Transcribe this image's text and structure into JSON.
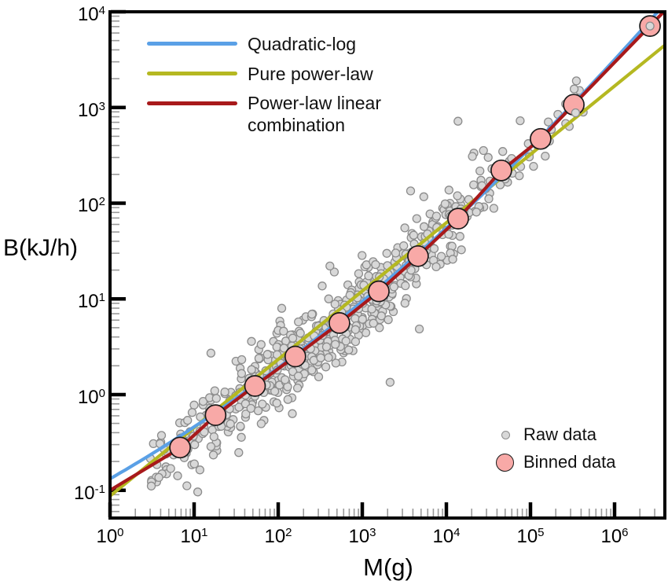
{
  "figure": {
    "x_axis": {
      "label": "M(g)",
      "tick_exponents": [
        0,
        1,
        2,
        3,
        4,
        5,
        6
      ]
    },
    "y_axis": {
      "label": "B(kJ/h)",
      "tick_exponents": [
        4,
        3,
        2,
        1,
        0,
        -1
      ]
    },
    "legend_fits": {
      "items": [
        {
          "label": "Quadratic-log",
          "color": "#5aa0e6"
        },
        {
          "label": "Pure power-law",
          "color": "#b5b821"
        },
        {
          "label": "Power-law linear combination",
          "color": "#a8191b"
        }
      ]
    },
    "legend_data": {
      "items": [
        {
          "label": "Raw data"
        },
        {
          "label": "Binned data"
        }
      ]
    }
  },
  "colors": {
    "quadratic_log_line": "#5aa0e6",
    "pure_power_law_line": "#b5b821",
    "combo_line": "#a8191b",
    "binned_fill": "#f8a9a7",
    "binned_stroke": "#1a1a1a",
    "raw_fill": "#d8d8d8",
    "raw_stroke": "#8c8c8c",
    "axis": "#000000",
    "minor_tick": "#9a9a9a"
  },
  "chart_data": {
    "type": "scatter",
    "title": "",
    "xlabel": "M(g)",
    "ylabel": "B(kJ/h)",
    "x_scale": "log",
    "y_scale": "log",
    "xlim": [
      1,
      4000000
    ],
    "ylim": [
      0.051,
      10000
    ],
    "x_tick_values": [
      1,
      10,
      100,
      1000,
      10000,
      100000,
      1000000
    ],
    "y_tick_values": [
      0.1,
      1,
      10,
      100,
      1000,
      10000
    ],
    "grid": false,
    "legend_position": [
      "fit lines: top-left",
      "data markers: bottom-right"
    ],
    "binned_points_M_B": [
      [
        6.8,
        0.28
      ],
      [
        18,
        0.61
      ],
      [
        53,
        1.23
      ],
      [
        160,
        2.5
      ],
      [
        535,
        5.6
      ],
      [
        1570,
        12
      ],
      [
        4600,
        28
      ],
      [
        13800,
        69
      ],
      [
        45000,
        220
      ],
      [
        132000,
        470
      ],
      [
        327000,
        1070
      ],
      [
        2640000,
        7100
      ]
    ],
    "fit_lines": [
      {
        "name": "Quadratic-log",
        "model": "log10B = a + b*log10M + c*(log10M)^2",
        "coeffs": {
          "a": -0.88,
          "b": 0.505,
          "c": 0.0375
        }
      },
      {
        "name": "Pure power-law",
        "model": "log10B = intercept + slope*log10M",
        "coeffs": {
          "intercept": -1.06,
          "slope": 0.714
        }
      },
      {
        "name": "Power-law linear combination",
        "model": "piecewise anchors in (log10M, log10B)",
        "anchors": [
          [
            0,
            -1.0
          ],
          [
            0.832,
            -0.559
          ],
          [
            1.262,
            -0.214
          ],
          [
            1.72,
            0.09
          ],
          [
            2.206,
            0.402
          ],
          [
            2.729,
            0.747
          ],
          [
            3.196,
            1.076
          ],
          [
            3.664,
            1.445
          ],
          [
            4.14,
            1.84
          ],
          [
            4.654,
            2.341
          ],
          [
            5.121,
            2.669
          ],
          [
            5.514,
            3.031
          ],
          [
            6.421,
            3.852
          ],
          [
            6.62,
            4.03
          ]
        ]
      }
    ],
    "raw_scatter": {
      "note": "approx. 660 unlabeled raw points scattered about the combination fit line; reproduced with a seeded generator",
      "count": 660,
      "seed": 7,
      "logM_mean": 2.55,
      "logM_sd": 1.22,
      "logM_min": 0.48,
      "logM_max": 5.75,
      "logB_sd": 0.2,
      "outlier_frac": 0.07,
      "outlier_sd": 0.42,
      "extra_points_M_B": [
        [
          331000,
          1560
        ],
        [
          344000,
          880
        ],
        [
          2640000,
          7100
        ]
      ]
    }
  }
}
